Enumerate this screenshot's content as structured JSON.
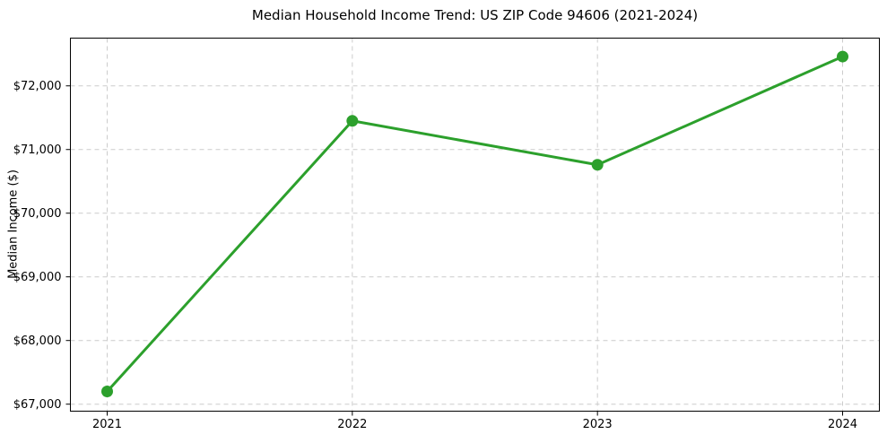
{
  "chart_data": {
    "type": "line",
    "title": "Median Household Income Trend: US ZIP Code 94606 (2021-2024)",
    "xlabel": "",
    "ylabel": "Median Income ($)",
    "categories": [
      2021,
      2022,
      2023,
      2024
    ],
    "series": [
      {
        "name": "Median Household Income",
        "values": [
          67200,
          71450,
          70760,
          72460
        ]
      }
    ],
    "x_ticks": [
      {
        "value": 2021,
        "label": "2021"
      },
      {
        "value": 2022,
        "label": "2022"
      },
      {
        "value": 2023,
        "label": "2023"
      },
      {
        "value": 2024,
        "label": "2024"
      }
    ],
    "y_ticks": [
      {
        "value": 67000,
        "label": "$67,000"
      },
      {
        "value": 68000,
        "label": "$68,000"
      },
      {
        "value": 69000,
        "label": "$69,000"
      },
      {
        "value": 70000,
        "label": "$70,000"
      },
      {
        "value": 71000,
        "label": "$71,000"
      },
      {
        "value": 72000,
        "label": "$72,000"
      }
    ],
    "xlim": [
      2020.85,
      2024.15
    ],
    "ylim": [
      66890,
      72750
    ],
    "grid": "dashed-both",
    "legend": "none",
    "line_color": "#2ca02c",
    "marker": "circle",
    "grid_color": "#cccccc",
    "spine_color": "#000000"
  }
}
